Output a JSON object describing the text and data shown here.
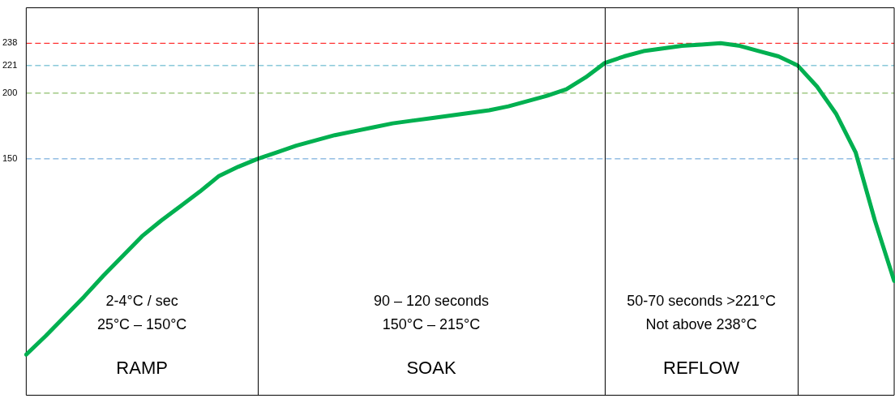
{
  "chart_data": {
    "type": "line",
    "categories": [
      null,
      null,
      null,
      null,
      null,
      null,
      null,
      null,
      null,
      null,
      null,
      null,
      null,
      null,
      null,
      null,
      null,
      null,
      null,
      null,
      null,
      null,
      null,
      null,
      null,
      null,
      null,
      null,
      null,
      null,
      null,
      null,
      null,
      null,
      null,
      null,
      null,
      null,
      null,
      null,
      null,
      null,
      null,
      null,
      null,
      null
    ],
    "series": [
      {
        "color": "#00b050",
        "values": [
          1,
          15,
          30,
          45,
          61,
          76,
          91,
          103,
          114,
          125,
          137,
          144,
          150,
          155,
          160,
          164,
          168,
          171,
          174,
          177,
          179,
          181,
          183,
          185,
          187,
          190,
          194,
          198,
          203,
          212,
          223,
          228,
          232,
          234,
          236,
          237,
          238,
          236,
          232,
          228,
          221,
          205,
          184,
          155,
          103,
          57
        ]
      }
    ],
    "ylim": [
      -30,
      265
    ],
    "yticks": [
      150,
      200,
      221,
      238
    ],
    "tick_labels": "y",
    "marker": "none",
    "line_style": "solid",
    "ref_lines": [
      {
        "axis": "y",
        "value": 238,
        "color": "#ff0000",
        "line_style": "dashed"
      },
      {
        "axis": "y",
        "value": 221,
        "color": "#4bacc6",
        "line_style": "dashed"
      },
      {
        "axis": "y",
        "value": 200,
        "color": "#70ad47",
        "line_style": "dashed"
      },
      {
        "axis": "y",
        "value": 150,
        "color": "#5b9bd5",
        "line_style": "dashed"
      }
    ],
    "annotations": [
      "2-4°C / sec\n25°C – 150°C",
      "RAMP",
      "90 – 120 seconds\n150°C – 215°C",
      "SOAK",
      "50-70 seconds >221°C\nNot above 238°C",
      "REFLOW"
    ]
  }
}
